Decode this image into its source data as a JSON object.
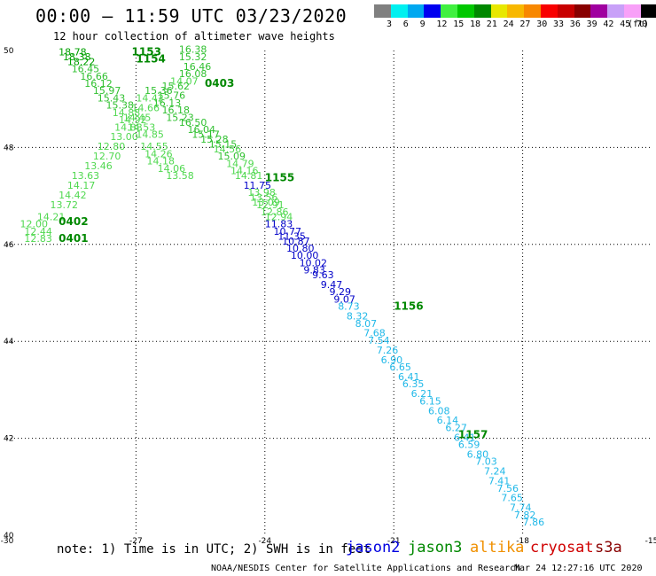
{
  "header": {
    "title": "00:00 – 11:59 UTC 03/23/2020",
    "subtitle": "12 hour collection of altimeter wave heights"
  },
  "legend": {
    "colors": [
      "#808080",
      "#00f0f0",
      "#00a8f0",
      "#0000f0",
      "#40f040",
      "#00c800",
      "#008800",
      "#e8e800",
      "#f8b800",
      "#f88800",
      "#f80000",
      "#c80000",
      "#880000",
      "#a000a0",
      "#c8a0f8",
      "#f8a0f8",
      "#000000"
    ],
    "labels": [
      "3",
      "6",
      "9",
      "12",
      "15",
      "18",
      "21",
      "24",
      "27",
      "30",
      "33",
      "36",
      "39",
      "42",
      "45",
      "70"
    ],
    "unit": "(ft)"
  },
  "chart_data": {
    "type": "scatter",
    "title": "00:00 – 11:59 UTC 03/23/2020",
    "xlabel": "",
    "ylabel": "",
    "xlim": [
      -30,
      -15
    ],
    "ylim": [
      40,
      50
    ],
    "x_ticks": [
      "-30",
      "-27",
      "-24",
      "-21",
      "-18",
      "-15"
    ],
    "y_ticks": [
      "40",
      "42",
      "44",
      "46",
      "48",
      "50"
    ],
    "grid": true,
    "track_labels": [
      {
        "text": "1153",
        "lon": -27.1,
        "lat": 49.9,
        "color": "#008800"
      },
      {
        "text": "1154",
        "lon": -27.0,
        "lat": 49.75,
        "color": "#008800"
      },
      {
        "text": "0403",
        "lon": -25.4,
        "lat": 49.25,
        "color": "#008800"
      },
      {
        "text": "1155",
        "lon": -24.0,
        "lat": 47.3,
        "color": "#008800"
      },
      {
        "text": "0402",
        "lon": -28.8,
        "lat": 46.4,
        "color": "#008800"
      },
      {
        "text": "0401",
        "lon": -28.8,
        "lat": 46.05,
        "color": "#008800"
      },
      {
        "text": "1156",
        "lon": -21.0,
        "lat": 44.65,
        "color": "#008800"
      },
      {
        "text": "1157",
        "lon": -19.5,
        "lat": 42.0,
        "color": "#008800"
      }
    ],
    "series": [
      {
        "points": [
          {
            "lon": -28.8,
            "lat": 49.9,
            "v": "18.78"
          },
          {
            "lon": -28.7,
            "lat": 49.8,
            "v": "18.38"
          },
          {
            "lon": -28.6,
            "lat": 49.7,
            "v": "18.22"
          },
          {
            "lon": -28.5,
            "lat": 49.55,
            "v": "16.45"
          },
          {
            "lon": -28.3,
            "lat": 49.4,
            "v": "16.66"
          },
          {
            "lon": -28.2,
            "lat": 49.25,
            "v": "16.12"
          },
          {
            "lon": -28.0,
            "lat": 49.1,
            "v": "15.97"
          },
          {
            "lon": -27.9,
            "lat": 48.95,
            "v": "15.43"
          },
          {
            "lon": -27.7,
            "lat": 48.8,
            "v": "15.38"
          },
          {
            "lon": -27.55,
            "lat": 48.65,
            "v": "14.88"
          },
          {
            "lon": -27.4,
            "lat": 48.5,
            "v": "14.92"
          },
          {
            "lon": -27.2,
            "lat": 48.35,
            "v": "14.53"
          },
          {
            "lon": -27.0,
            "lat": 48.2,
            "v": "14.85"
          },
          {
            "lon": -26.9,
            "lat": 47.95,
            "v": "14.55"
          },
          {
            "lon": -26.8,
            "lat": 47.8,
            "v": "14.26"
          },
          {
            "lon": -26.75,
            "lat": 47.65,
            "v": "14.18"
          },
          {
            "lon": -26.5,
            "lat": 47.5,
            "v": "14.06"
          },
          {
            "lon": -26.3,
            "lat": 47.35,
            "v": "13.58"
          }
        ]
      },
      {
        "points": [
          {
            "lon": -26.0,
            "lat": 49.95,
            "v": "16.38"
          },
          {
            "lon": -26.0,
            "lat": 49.8,
            "v": "15.32"
          },
          {
            "lon": -25.9,
            "lat": 49.6,
            "v": "16.46"
          },
          {
            "lon": -26.0,
            "lat": 49.45,
            "v": "16.08"
          },
          {
            "lon": -26.2,
            "lat": 49.3,
            "v": "14.07"
          },
          {
            "lon": -26.4,
            "lat": 49.2,
            "v": "15.62"
          },
          {
            "lon": -26.5,
            "lat": 49.0,
            "v": "15.76"
          },
          {
            "lon": -26.6,
            "lat": 48.85,
            "v": "16.13"
          },
          {
            "lon": -26.4,
            "lat": 48.7,
            "v": "16.18"
          },
          {
            "lon": -26.3,
            "lat": 48.55,
            "v": "15.23"
          },
          {
            "lon": -26.0,
            "lat": 48.45,
            "v": "16.50"
          },
          {
            "lon": -25.8,
            "lat": 48.3,
            "v": "16.04"
          },
          {
            "lon": -25.7,
            "lat": 48.2,
            "v": "15.17"
          },
          {
            "lon": -25.5,
            "lat": 48.1,
            "v": "15.28"
          },
          {
            "lon": -25.3,
            "lat": 48.0,
            "v": "15.15"
          },
          {
            "lon": -25.2,
            "lat": 47.9,
            "v": "14.56"
          },
          {
            "lon": -25.1,
            "lat": 47.75,
            "v": "15.09"
          },
          {
            "lon": -24.9,
            "lat": 47.6,
            "v": "14.79"
          },
          {
            "lon": -24.8,
            "lat": 47.45,
            "v": "14.16"
          },
          {
            "lon": -24.7,
            "lat": 47.35,
            "v": "14.81"
          },
          {
            "lon": -24.5,
            "lat": 47.15,
            "v": "11.75"
          },
          {
            "lon": -24.4,
            "lat": 47.0,
            "v": "13.98"
          },
          {
            "lon": -24.35,
            "lat": 46.9,
            "v": "13.56"
          },
          {
            "lon": -24.3,
            "lat": 46.8,
            "v": "13.09"
          },
          {
            "lon": -24.2,
            "lat": 46.75,
            "v": "12.91"
          },
          {
            "lon": -24.1,
            "lat": 46.6,
            "v": "12.86"
          },
          {
            "lon": -24.0,
            "lat": 46.5,
            "v": "12.94"
          },
          {
            "lon": -24.0,
            "lat": 46.35,
            "v": "11.83"
          },
          {
            "lon": -23.8,
            "lat": 46.2,
            "v": "10.77"
          },
          {
            "lon": -23.7,
            "lat": 46.1,
            "v": "11.35"
          },
          {
            "lon": -23.6,
            "lat": 46.0,
            "v": "10.87"
          },
          {
            "lon": -23.5,
            "lat": 45.85,
            "v": "10.80"
          },
          {
            "lon": -23.4,
            "lat": 45.7,
            "v": "10.00"
          },
          {
            "lon": -23.2,
            "lat": 45.55,
            "v": "10.02"
          },
          {
            "lon": -23.1,
            "lat": 45.4,
            "v": "9.83"
          },
          {
            "lon": -22.9,
            "lat": 45.3,
            "v": "9.63"
          },
          {
            "lon": -22.7,
            "lat": 45.1,
            "v": "9.47"
          },
          {
            "lon": -22.5,
            "lat": 44.95,
            "v": "9.29"
          },
          {
            "lon": -22.4,
            "lat": 44.8,
            "v": "9.07"
          },
          {
            "lon": -22.3,
            "lat": 44.65,
            "v": "8.73"
          },
          {
            "lon": -22.1,
            "lat": 44.45,
            "v": "8.32"
          },
          {
            "lon": -21.9,
            "lat": 44.3,
            "v": "8.07"
          },
          {
            "lon": -21.7,
            "lat": 44.1,
            "v": "7.68"
          },
          {
            "lon": -21.6,
            "lat": 43.95,
            "v": "7.54"
          },
          {
            "lon": -21.4,
            "lat": 43.75,
            "v": "7.26"
          },
          {
            "lon": -21.3,
            "lat": 43.55,
            "v": "6.90"
          },
          {
            "lon": -21.1,
            "lat": 43.4,
            "v": "6.65"
          },
          {
            "lon": -20.9,
            "lat": 43.2,
            "v": "6.41"
          },
          {
            "lon": -20.8,
            "lat": 43.05,
            "v": "6.35"
          },
          {
            "lon": -20.6,
            "lat": 42.85,
            "v": "6.21"
          },
          {
            "lon": -20.4,
            "lat": 42.7,
            "v": "6.15"
          },
          {
            "lon": -20.2,
            "lat": 42.5,
            "v": "6.08"
          },
          {
            "lon": -20.0,
            "lat": 42.3,
            "v": "6.14"
          },
          {
            "lon": -19.8,
            "lat": 42.15,
            "v": "6.27"
          },
          {
            "lon": -19.6,
            "lat": 41.95,
            "v": "6.41"
          },
          {
            "lon": -19.5,
            "lat": 41.8,
            "v": "6.59"
          },
          {
            "lon": -19.3,
            "lat": 41.6,
            "v": "6.80"
          },
          {
            "lon": -19.1,
            "lat": 41.45,
            "v": "7.03"
          },
          {
            "lon": -18.9,
            "lat": 41.25,
            "v": "7.24"
          },
          {
            "lon": -18.8,
            "lat": 41.05,
            "v": "7.41"
          },
          {
            "lon": -18.6,
            "lat": 40.9,
            "v": "7.56"
          },
          {
            "lon": -18.5,
            "lat": 40.7,
            "v": "7.65"
          },
          {
            "lon": -18.3,
            "lat": 40.5,
            "v": "7.74"
          },
          {
            "lon": -18.2,
            "lat": 40.35,
            "v": "7.82"
          },
          {
            "lon": -18.0,
            "lat": 40.2,
            "v": "7.86"
          }
        ]
      },
      {
        "points": [
          {
            "lon": -29.7,
            "lat": 46.35,
            "v": "12.00"
          },
          {
            "lon": -29.6,
            "lat": 46.2,
            "v": "12.44"
          },
          {
            "lon": -29.6,
            "lat": 46.05,
            "v": "12.83"
          },
          {
            "lon": -29.3,
            "lat": 46.5,
            "v": "14.21"
          },
          {
            "lon": -29.0,
            "lat": 46.75,
            "v": "13.72"
          },
          {
            "lon": -28.8,
            "lat": 46.95,
            "v": "14.42"
          },
          {
            "lon": -28.6,
            "lat": 47.15,
            "v": "14.17"
          },
          {
            "lon": -28.5,
            "lat": 47.35,
            "v": "13.63"
          },
          {
            "lon": -28.2,
            "lat": 47.55,
            "v": "13.46"
          },
          {
            "lon": -28.0,
            "lat": 47.75,
            "v": "12.70"
          },
          {
            "lon": -27.9,
            "lat": 47.95,
            "v": "12.80"
          },
          {
            "lon": -27.6,
            "lat": 48.15,
            "v": "13.00"
          },
          {
            "lon": -27.5,
            "lat": 48.35,
            "v": "14.88"
          },
          {
            "lon": -27.3,
            "lat": 48.55,
            "v": "14.45"
          },
          {
            "lon": -27.1,
            "lat": 48.75,
            "v": "14.66"
          },
          {
            "lon": -27.0,
            "lat": 48.95,
            "v": "14.42"
          },
          {
            "lon": -26.8,
            "lat": 49.1,
            "v": "15.36"
          }
        ]
      }
    ]
  },
  "note": "note:  1) Time is in UTC;  2) SWH is in feet",
  "satellites": [
    {
      "name": "jason2",
      "color": "#0000e0"
    },
    {
      "name": "jason3",
      "color": "#008800"
    },
    {
      "name": "altika",
      "color": "#f09000"
    },
    {
      "name": "cryosat",
      "color": "#d00000"
    },
    {
      "name": "s3a",
      "color": "#880000"
    }
  ],
  "footer": {
    "credit": "NOAA/NESDIS Center for Satellite Applications and Research",
    "timestamp": "Mar 24 12:27:16 UTC 2020"
  }
}
